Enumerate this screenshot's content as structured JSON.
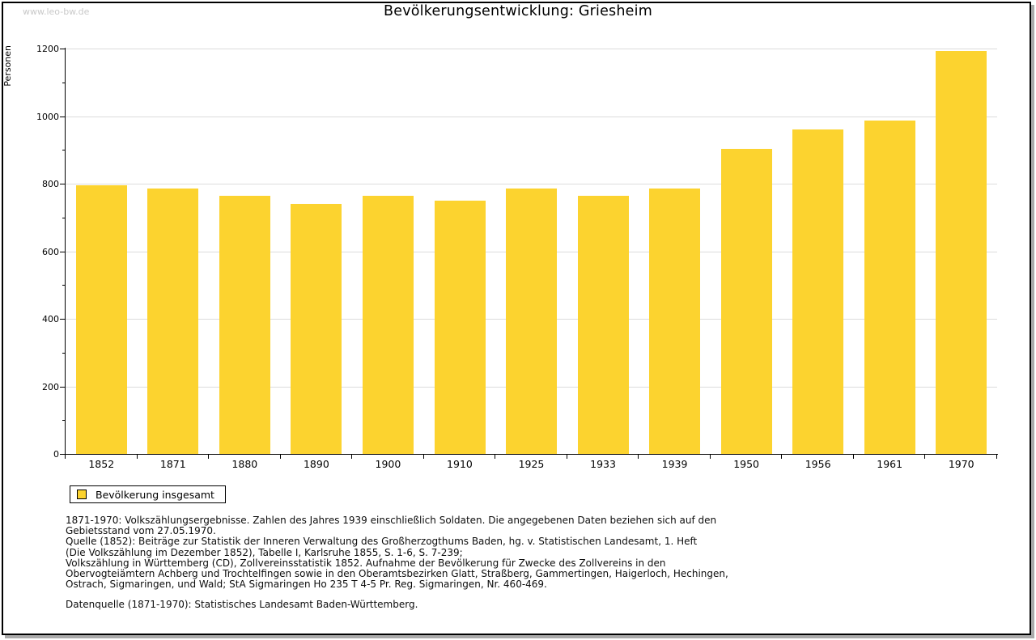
{
  "watermark": "www.leo-bw.de",
  "chart_data": {
    "type": "bar",
    "title": "Bevölkerungsentwicklung: Griesheim",
    "ylabel": "Personen",
    "xlabel": "",
    "categories": [
      "1852",
      "1871",
      "1880",
      "1890",
      "1900",
      "1910",
      "1925",
      "1933",
      "1939",
      "1950",
      "1956",
      "1961",
      "1970"
    ],
    "values": [
      795,
      786,
      765,
      741,
      765,
      749,
      786,
      765,
      785,
      902,
      961,
      988,
      1193
    ],
    "ylim": [
      0,
      1200
    ],
    "y_major_step": 200,
    "y_minor_step": 100,
    "grid": true,
    "bar_color": "#FCD32F",
    "gridline_color": "#dcdcdc",
    "legend": {
      "label": "Bevölkerung insgesamt",
      "position": "bottom-left"
    }
  },
  "footnotes": [
    "1871-1970: Volkszählungsergebnisse. Zahlen des Jahres 1939 einschließlich Soldaten. Die angegebenen Daten beziehen sich auf den",
    "Gebietsstand vom 27.05.1970.",
    "Quelle (1852): Beiträge zur Statistik der Inneren Verwaltung des Großherzogthums Baden, hg. v. Statistischen Landesamt, 1. Heft",
    "(Die Volkszählung im Dezember 1852), Tabelle I, Karlsruhe 1855, S. 1-6, S. 7-239;",
    "Volkszählung in Württemberg (CD), Zollvereinsstatistik 1852. Aufnahme der Bevölkerung für Zwecke des Zollvereins in den",
    "Obervogteiämtern Achberg und Trochtelfingen sowie in den Oberamtsbezirken Glatt, Straßberg, Gammertingen, Haigerloch, Hechingen,",
    "Ostrach, Sigmaringen, und Wald; StA Sigmaringen Ho 235 T 4-5 Pr. Reg. Sigmaringen, Nr. 460-469."
  ],
  "datasource": "Datenquelle (1871-1970): Statistisches Landesamt Baden-Württemberg."
}
